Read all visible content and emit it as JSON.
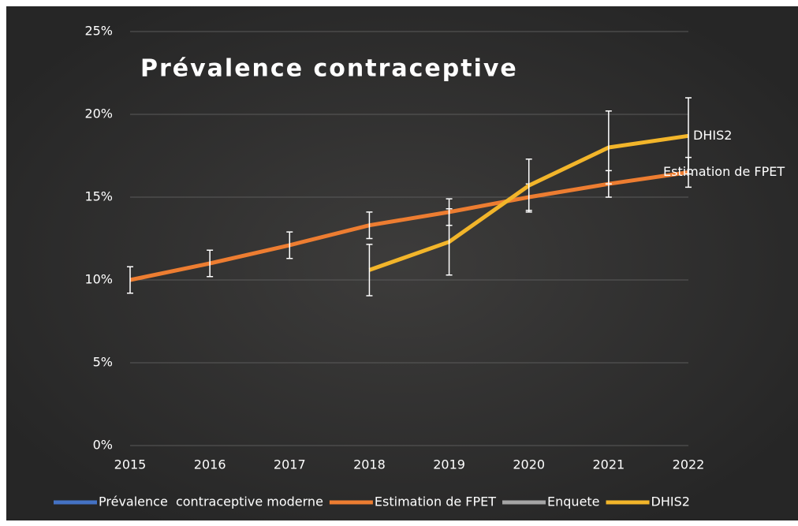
{
  "chart_data": {
    "type": "line",
    "title": "Prévalence contraceptive",
    "x": [
      2015,
      2016,
      2017,
      2018,
      2019,
      2020,
      2021,
      2022
    ],
    "xlim": [
      2015,
      2022
    ],
    "xticks": [
      2015,
      2016,
      2017,
      2018,
      2019,
      2020,
      2021,
      2022
    ],
    "ylim": [
      0,
      25
    ],
    "yticks": [
      {
        "value": 0,
        "label": "0%"
      },
      {
        "value": 5,
        "label": "5%"
      },
      {
        "value": 10,
        "label": "10%"
      },
      {
        "value": 15,
        "label": "15%"
      },
      {
        "value": 20,
        "label": "20%"
      },
      {
        "value": 25,
        "label": "25%"
      }
    ],
    "grid": true,
    "legend": "bottom",
    "series": [
      {
        "name": "Prévalence  contraceptive moderne",
        "color": "#4472c4",
        "values": [
          null,
          null,
          null,
          null,
          null,
          null,
          null,
          null
        ]
      },
      {
        "name": "Estimation de FPET",
        "color": "#ed7d31",
        "values": [
          10.0,
          11.0,
          12.1,
          13.3,
          14.1,
          15.0,
          15.8,
          16.5
        ],
        "errors": [
          0.8,
          0.8,
          0.8,
          0.8,
          0.8,
          0.8,
          0.8,
          0.9
        ],
        "end_label": true
      },
      {
        "name": "Enquete",
        "color": "#a5a5a5",
        "values": [
          null,
          null,
          null,
          null,
          null,
          null,
          null,
          null
        ]
      },
      {
        "name": "DHIS2",
        "color": "#f2b52a",
        "values": [
          null,
          null,
          null,
          10.6,
          12.3,
          15.7,
          18.0,
          18.7
        ],
        "errors": [
          null,
          null,
          null,
          1.55,
          2.0,
          1.6,
          2.2,
          2.3
        ],
        "end_label": true
      }
    ]
  }
}
